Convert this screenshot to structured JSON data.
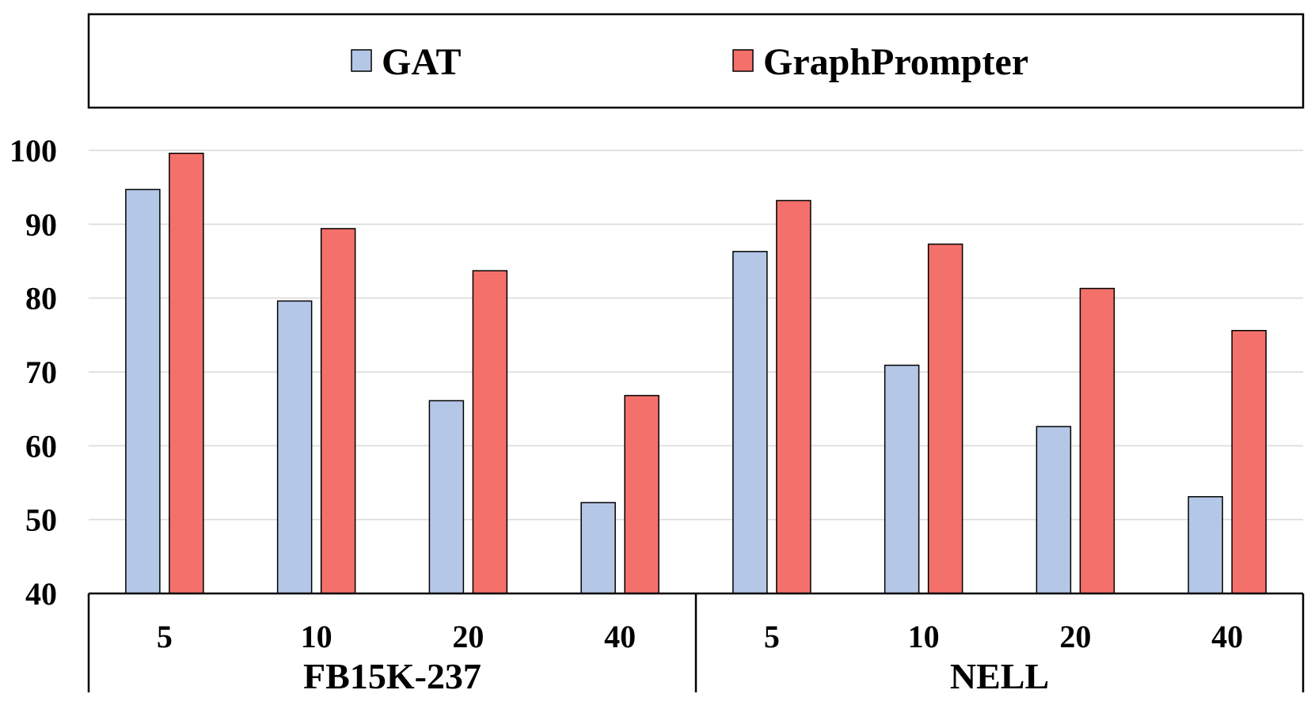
{
  "chart_data": {
    "type": "bar",
    "title": "",
    "xlabel": "",
    "ylabel": "",
    "ylim": [
      40,
      100
    ],
    "yticks": [
      40,
      50,
      60,
      70,
      80,
      90,
      100
    ],
    "grid": true,
    "legend_position": "top",
    "groups": [
      {
        "name": "FB15K-237",
        "categories": [
          "5",
          "10",
          "20",
          "40"
        ]
      },
      {
        "name": "NELL",
        "categories": [
          "5",
          "10",
          "20",
          "40"
        ]
      }
    ],
    "series": [
      {
        "name": "GAT",
        "color": "#b4c7e7",
        "values": [
          94.7,
          79.6,
          66.1,
          52.3,
          86.3,
          70.9,
          62.6,
          53.1
        ]
      },
      {
        "name": "GraphPrompter",
        "color": "#f4706a",
        "values": [
          99.6,
          89.4,
          83.7,
          66.8,
          93.2,
          87.3,
          81.3,
          75.6
        ]
      }
    ]
  }
}
